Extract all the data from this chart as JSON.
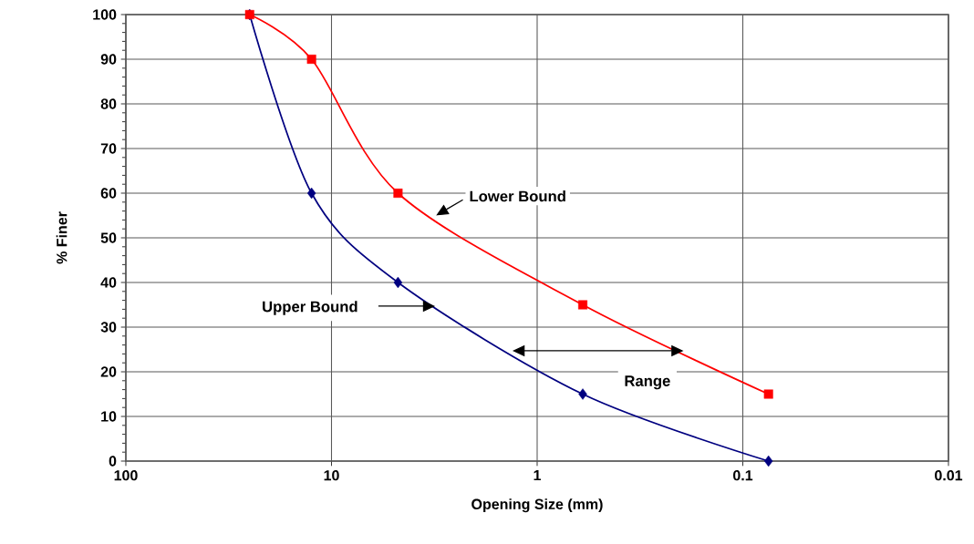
{
  "chart_data": {
    "type": "line",
    "xlabel": "Opening Size (mm)",
    "ylabel": "% Finer",
    "log": "x",
    "grid": true,
    "xlim": [
      100,
      0.01
    ],
    "ylim": [
      0,
      100
    ],
    "xticks": [
      100,
      10,
      1,
      0.1,
      0.01
    ],
    "yticks": [
      0,
      10,
      20,
      30,
      40,
      50,
      60,
      70,
      80,
      90,
      100
    ],
    "x": [
      25,
      12.5,
      4.75,
      0.6,
      0.075
    ],
    "series": [
      {
        "color": "#000080",
        "marker": "diamond",
        "values": [
          100,
          60,
          40,
          15,
          0
        ]
      },
      {
        "color": "#ff0000",
        "marker": "square",
        "values": [
          100,
          90,
          60,
          35,
          15
        ]
      }
    ],
    "annotations": [
      {
        "text": "Lower Bound",
        "x": 3.1,
        "y": 55
      },
      "Upper Bound",
      "Range"
    ]
  }
}
